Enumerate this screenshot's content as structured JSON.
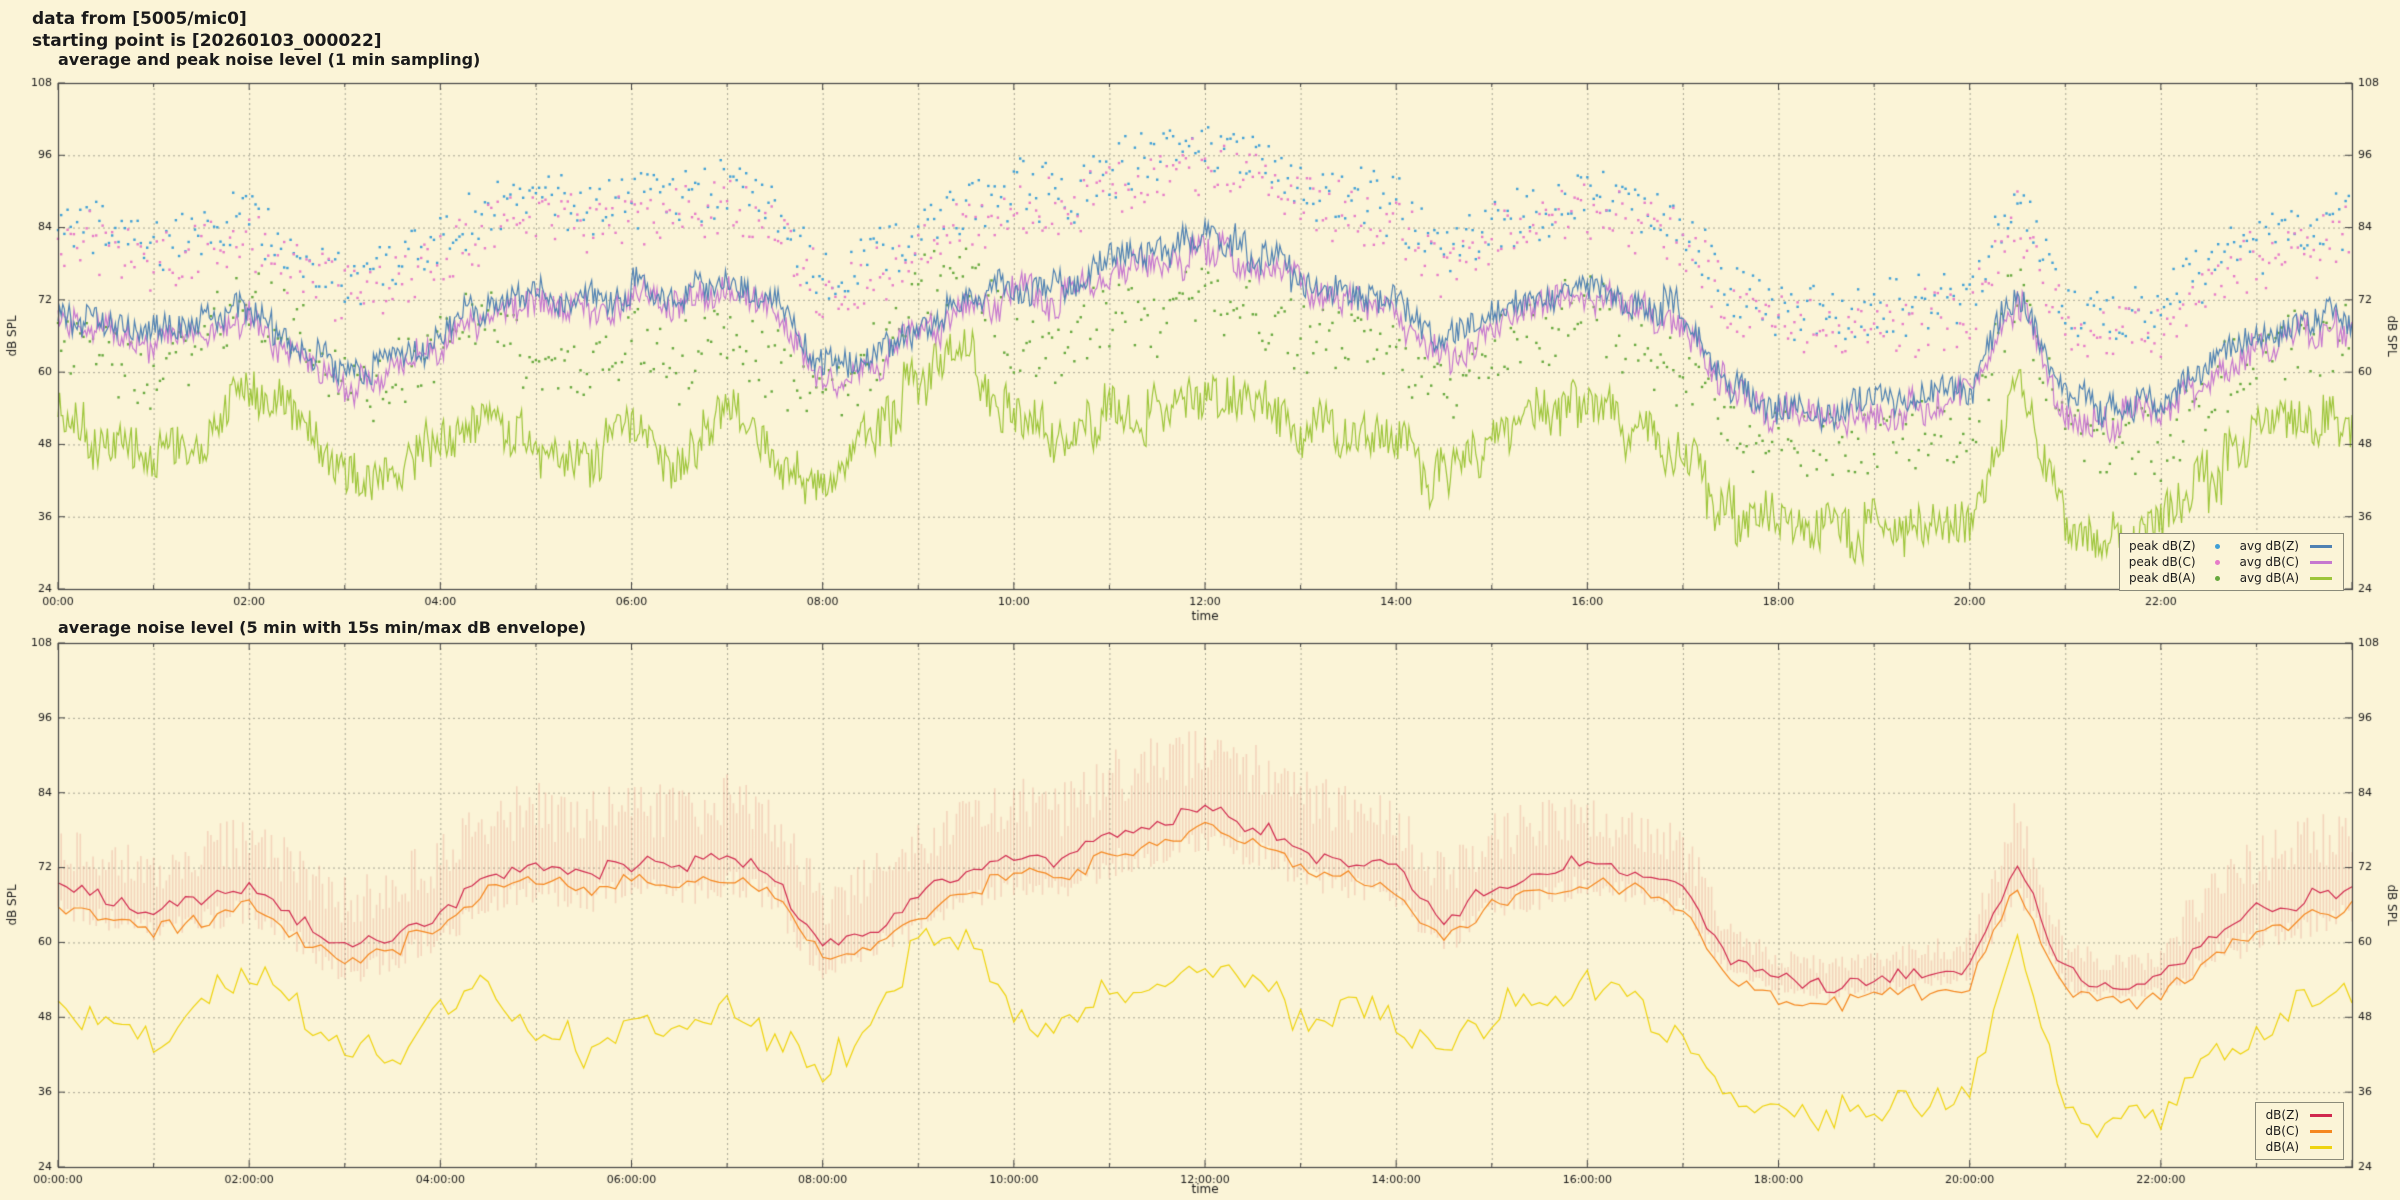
{
  "header": {
    "line1": "data from [5005/mic0]",
    "line2": "starting point is [20260103_000022]"
  },
  "colors": {
    "background": "#fbf4d7",
    "grid": "#a9a795",
    "axis": "#444444",
    "text": "#1a1a1a"
  },
  "chart_data": [
    {
      "type": "line+scatter",
      "title": "average and peak noise level (1 min sampling)",
      "xlabel": "time",
      "ylabel": "dB SPL",
      "ylim": [
        24,
        108
      ],
      "yticks": [
        24,
        36,
        48,
        60,
        72,
        84,
        96,
        108
      ],
      "x_range_hours": [
        0,
        24
      ],
      "xtick_hours": [
        0,
        2,
        4,
        6,
        8,
        10,
        12,
        14,
        16,
        18,
        20,
        22
      ],
      "xtick_labels": [
        "00:00",
        "02:00",
        "04:00",
        "06:00",
        "08:00",
        "10:00",
        "12:00",
        "14:00",
        "16:00",
        "18:00",
        "20:00",
        "22:00"
      ],
      "grid": true,
      "legend_position": "bottom-right",
      "control_step_hours": 0.5,
      "sample_minutes": 1,
      "series": [
        {
          "name": "peak dB(Z)",
          "kind": "scatter",
          "color": "#3f9fd6",
          "jitter": 4.5,
          "values": [
            84,
            82,
            80,
            82,
            84,
            79,
            74,
            76,
            80,
            86,
            88,
            86,
            88,
            87,
            89,
            86,
            74,
            77,
            82,
            86,
            89,
            88,
            92,
            94,
            96,
            94,
            90,
            88,
            86,
            78,
            84,
            86,
            88,
            86,
            84,
            72,
            69,
            68,
            69,
            70,
            71,
            88,
            70,
            68,
            69,
            76,
            80,
            82,
            84
          ]
        },
        {
          "name": "peak dB(C)",
          "kind": "scatter",
          "color": "#e67bc8",
          "jitter": 4.5,
          "values": [
            81,
            79,
            77,
            79,
            81,
            76,
            71,
            73,
            77,
            83,
            85,
            83,
            85,
            84,
            86,
            83,
            71,
            74,
            79,
            83,
            86,
            85,
            89,
            91,
            93,
            91,
            87,
            85,
            83,
            75,
            81,
            83,
            85,
            83,
            81,
            69,
            66,
            65,
            66,
            67,
            68,
            85,
            67,
            65,
            66,
            73,
            77,
            79,
            81
          ]
        },
        {
          "name": "peak dB(A)",
          "kind": "scatter",
          "color": "#66a83d",
          "jitter": 5.5,
          "values": [
            65,
            61,
            58,
            63,
            71,
            65,
            55,
            57,
            63,
            68,
            59,
            57,
            63,
            59,
            65,
            59,
            55,
            61,
            73,
            76,
            63,
            61,
            68,
            65,
            71,
            68,
            63,
            65,
            61,
            55,
            63,
            65,
            68,
            63,
            59,
            49,
            47,
            46,
            47,
            48,
            49,
            73,
            47,
            46,
            47,
            55,
            61,
            63,
            65
          ]
        },
        {
          "name": "avg dB(A)",
          "kind": "line",
          "color": "#9dc53a",
          "jitter": 6.5,
          "values": [
            52,
            48,
            45,
            50,
            58,
            52,
            42,
            44,
            50,
            55,
            46,
            44,
            50,
            46,
            52,
            46,
            42,
            48,
            60,
            63,
            50,
            48,
            55,
            52,
            58,
            55,
            50,
            52,
            48,
            42,
            50,
            52,
            55,
            50,
            46,
            36,
            34,
            33,
            34,
            35,
            36,
            60,
            34,
            33,
            34,
            42,
            48,
            50,
            52
          ]
        },
        {
          "name": "avg dB(C)",
          "kind": "line",
          "color": "#c678cf",
          "jitter": 4.2,
          "values": [
            68,
            66,
            64,
            66,
            68,
            63,
            58,
            60,
            64,
            70,
            72,
            70,
            72,
            71,
            73,
            70,
            58,
            61,
            66,
            70,
            73,
            72,
            76,
            78,
            80,
            78,
            74,
            72,
            70,
            62,
            68,
            70,
            72,
            70,
            68,
            56,
            53,
            52,
            53,
            54,
            55,
            72,
            54,
            52,
            53,
            60,
            64,
            66,
            68
          ]
        },
        {
          "name": "avg dB(Z)",
          "kind": "line",
          "color": "#4f81b2",
          "jitter": 4.0,
          "values": [
            70,
            68,
            66,
            68,
            70,
            65,
            60,
            62,
            66,
            72,
            74,
            72,
            74,
            73,
            75,
            72,
            60,
            63,
            68,
            72,
            75,
            74,
            78,
            80,
            82,
            80,
            76,
            74,
            72,
            64,
            70,
            72,
            74,
            72,
            70,
            58,
            55,
            54,
            55,
            56,
            57,
            74,
            56,
            54,
            55,
            62,
            66,
            68,
            70
          ]
        }
      ],
      "legend": [
        {
          "label": "peak dB(Z)",
          "marker": "dot",
          "color": "#3f9fd6"
        },
        {
          "label": "peak dB(C)",
          "marker": "dot",
          "color": "#e67bc8"
        },
        {
          "label": "peak dB(A)",
          "marker": "dot",
          "color": "#66a83d"
        },
        {
          "label": "avg dB(Z)",
          "marker": "line",
          "color": "#4f81b2"
        },
        {
          "label": "avg dB(C)",
          "marker": "line",
          "color": "#c678cf"
        },
        {
          "label": "avg dB(A)",
          "marker": "line",
          "color": "#9dc53a"
        }
      ]
    },
    {
      "type": "line+envelope",
      "title": "average noise level (5 min with 15s min/max dB envelope)",
      "xlabel": "time",
      "ylabel": "dB SPL",
      "ylim": [
        24,
        108
      ],
      "yticks": [
        24,
        36,
        48,
        60,
        72,
        84,
        96,
        108
      ],
      "x_range_hours": [
        0,
        24
      ],
      "xtick_hours": [
        0,
        2,
        4,
        6,
        8,
        10,
        12,
        14,
        16,
        18,
        20,
        22
      ],
      "xtick_labels": [
        "00:00:00",
        "02:00:00",
        "04:00:00",
        "06:00:00",
        "08:00:00",
        "10:00:00",
        "12:00:00",
        "14:00:00",
        "16:00:00",
        "18:00:00",
        "20:00:00",
        "22:00:00"
      ],
      "grid": true,
      "legend_position": "bottom-right",
      "control_step_hours": 0.5,
      "sample_minutes": 5,
      "series": [
        {
          "name": "15s min/max envelope",
          "kind": "envelope",
          "color": "rgba(224,118,108,0.25)",
          "values": [
            69,
            67,
            65,
            67,
            69,
            64,
            59,
            61,
            65,
            71,
            73,
            71,
            73,
            72,
            74,
            71,
            59,
            62,
            67,
            71,
            74,
            73,
            77,
            79,
            81,
            79,
            75,
            73,
            71,
            63,
            69,
            71,
            73,
            71,
            69,
            57,
            54,
            53,
            54,
            55,
            56,
            73,
            55,
            53,
            54,
            61,
            65,
            67,
            69
          ],
          "amplitude": [
            10,
            10,
            10,
            11,
            12,
            12,
            12,
            12,
            13,
            13,
            13,
            13,
            13,
            13,
            13,
            13,
            12,
            12,
            12,
            12,
            13,
            13,
            14,
            14,
            14,
            14,
            13,
            12,
            12,
            11,
            12,
            12,
            11,
            10,
            10,
            6,
            5,
            5,
            5,
            5,
            6,
            12,
            6,
            5,
            6,
            12,
            13,
            13,
            13
          ]
        },
        {
          "name": "dB(A)",
          "kind": "line",
          "color": "#eed30e",
          "jitter": 4.0,
          "values": [
            51,
            47,
            44,
            49,
            57,
            51,
            41,
            43,
            49,
            54,
            45,
            43,
            49,
            45,
            51,
            45,
            41,
            47,
            59,
            62,
            49,
            47,
            54,
            51,
            57,
            54,
            49,
            51,
            47,
            41,
            49,
            51,
            54,
            49,
            45,
            35,
            33,
            32,
            33,
            34,
            35,
            59,
            33,
            32,
            33,
            41,
            47,
            49,
            51
          ]
        },
        {
          "name": "dB(C)",
          "kind": "line",
          "color": "#f5871f",
          "jitter": 1.8,
          "values": [
            66,
            64,
            62,
            64,
            66,
            61,
            57,
            59,
            63,
            68,
            70,
            68,
            70,
            69,
            71,
            68,
            57,
            59,
            64,
            68,
            71,
            70,
            74,
            76,
            78,
            76,
            72,
            70,
            68,
            60,
            66,
            68,
            70,
            68,
            66,
            54,
            51,
            50,
            51,
            52,
            53,
            70,
            52,
            50,
            51,
            58,
            62,
            64,
            66
          ]
        },
        {
          "name": "dB(Z)",
          "kind": "line",
          "color": "#d0284e",
          "jitter": 1.8,
          "values": [
            69,
            67,
            65,
            67,
            69,
            64,
            59,
            61,
            65,
            71,
            73,
            71,
            73,
            72,
            74,
            71,
            59,
            62,
            67,
            71,
            74,
            73,
            77,
            79,
            81,
            79,
            75,
            73,
            71,
            63,
            69,
            71,
            73,
            71,
            69,
            57,
            54,
            53,
            54,
            55,
            56,
            73,
            55,
            53,
            54,
            61,
            65,
            67,
            69
          ]
        }
      ],
      "legend": [
        {
          "label": "dB(Z)",
          "marker": "line",
          "color": "#d0284e"
        },
        {
          "label": "dB(C)",
          "marker": "line",
          "color": "#f5871f"
        },
        {
          "label": "dB(A)",
          "marker": "line",
          "color": "#eed30e"
        }
      ]
    }
  ]
}
